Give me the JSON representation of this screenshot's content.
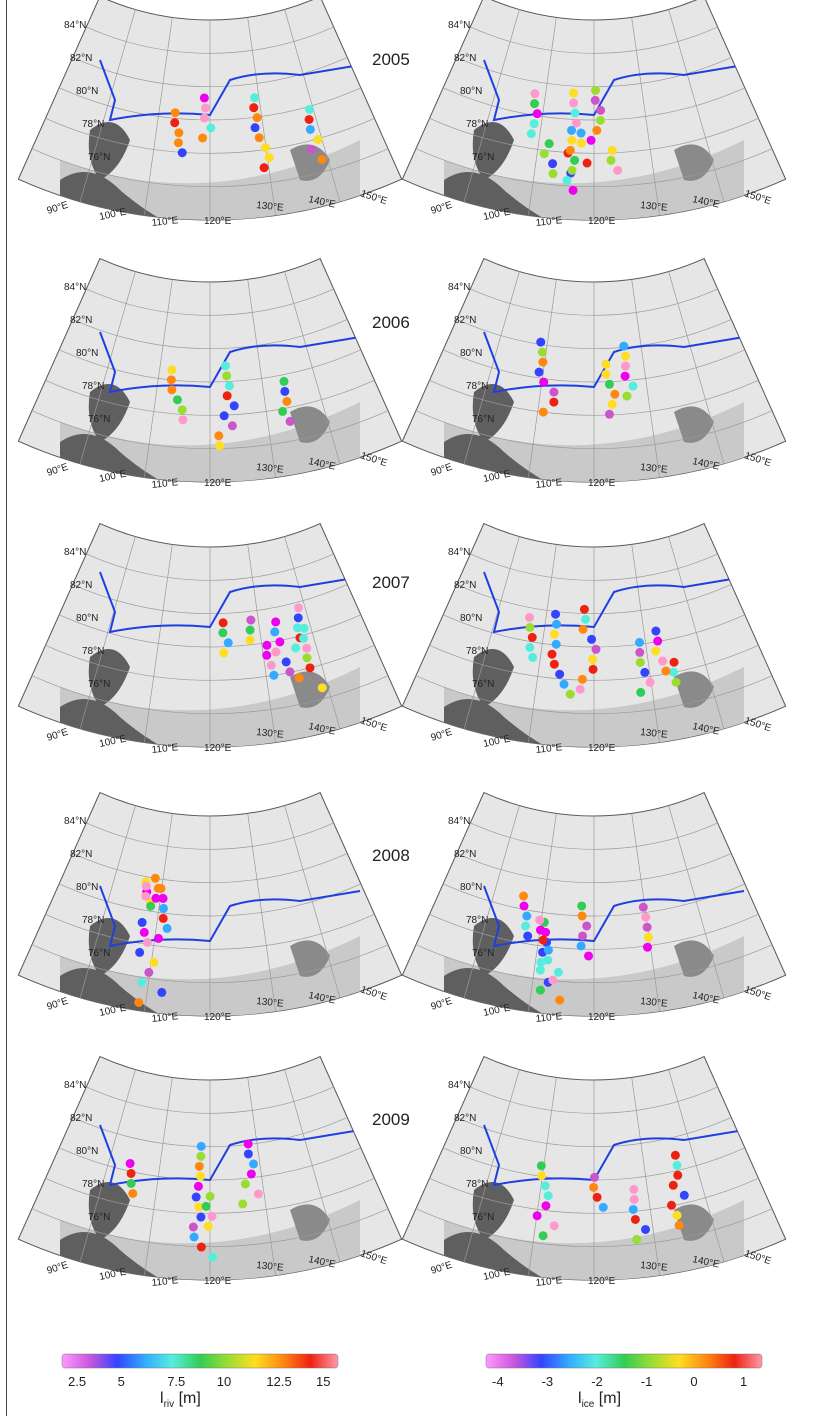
{
  "panels": [
    {
      "year": "2005"
    },
    {
      "year": "2006"
    },
    {
      "year": "2007"
    },
    {
      "year": "2008"
    },
    {
      "year": "2009"
    }
  ],
  "map": {
    "lat_labels": [
      "84°N",
      "82°N",
      "80°N",
      "78°N",
      "76°N"
    ],
    "lon_labels": [
      "90°E",
      "100°E",
      "110°E",
      "120°E",
      "130°E",
      "140°E",
      "150°E"
    ],
    "colors": {
      "land": "#5f5f5f",
      "shelf": "#c9c9c9",
      "deep": "#e6e6e6",
      "grid": "#9a9a9a",
      "boundary": "#1f3fe0"
    }
  },
  "colorbars": {
    "left": {
      "ticks": [
        "2.5",
        "5",
        "7.5",
        "10",
        "12.5",
        "15"
      ],
      "label": "l",
      "label_sub": "riv",
      "label_unit": " [m]"
    },
    "right": {
      "ticks": [
        "-4",
        "-3",
        "-2",
        "-1",
        "0",
        "1"
      ],
      "label": "l",
      "label_sub": "ice",
      "label_unit": " [m]"
    },
    "colormap": [
      "#ff99ff",
      "#cc55dd",
      "#3344ff",
      "#33aaff",
      "#55eedd",
      "#33cc55",
      "#99dd33",
      "#ffdd22",
      "#ff8811",
      "#ee2211",
      "#ff99aa"
    ]
  }
}
